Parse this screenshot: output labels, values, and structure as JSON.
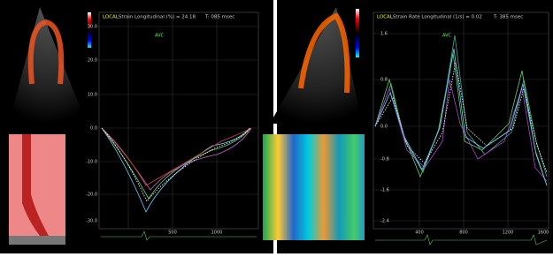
{
  "left": {
    "header": "LOCAL:",
    "measure": "Strain Longitudinal (%) = 24.18",
    "time": "T: 085 msec",
    "event": "AVC",
    "yticks": [
      "30.0",
      "20.0",
      "10.0",
      "0.0",
      "-10.0",
      "-20.0",
      "-30.0"
    ],
    "xticks": [
      "500",
      "1000"
    ]
  },
  "right": {
    "header": "LOCAL:",
    "measure": "Strain Rate Longitudinal (1/s) = 0.02",
    "time": "T: 385 msec",
    "event": "AVC",
    "yticks": [
      "1.6",
      "0.8",
      "0.0",
      "-0.8",
      "-1.6",
      "-2.4"
    ],
    "xticks": [
      "400",
      "800",
      "1200",
      "1600"
    ]
  }
}
